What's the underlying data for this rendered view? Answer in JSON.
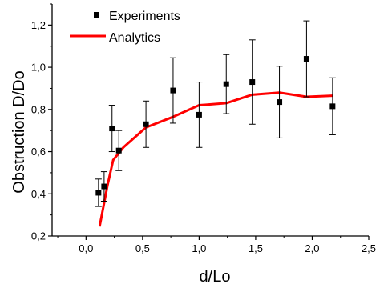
{
  "chart_data": {
    "type": "scatter",
    "xlabel": "d/Lo",
    "ylabel": "Obstruction D/Do",
    "xlim": [
      -0.3,
      2.5
    ],
    "ylim": [
      0.2,
      1.3
    ],
    "xticks": [
      0.0,
      0.5,
      1.0,
      1.5,
      2.0,
      2.5
    ],
    "xtick_labels": [
      "0,0",
      "0,5",
      "1,0",
      "1,5",
      "2,0",
      "2,5"
    ],
    "yticks": [
      0.2,
      0.4,
      0.6,
      0.8,
      1.0,
      1.2
    ],
    "ytick_labels": [
      "0,2",
      "0,4",
      "0,6",
      "0,8",
      "1,0",
      "1,2"
    ],
    "grid": false,
    "legend_position": "top-left",
    "series": [
      {
        "name": "Experiments",
        "kind": "points-with-error-bars",
        "color": "#000000",
        "points": [
          {
            "x": 0.11,
            "y": 0.405,
            "err": 0.065
          },
          {
            "x": 0.16,
            "y": 0.435,
            "err": 0.07
          },
          {
            "x": 0.23,
            "y": 0.71,
            "err": 0.11
          },
          {
            "x": 0.29,
            "y": 0.605,
            "err": 0.095
          },
          {
            "x": 0.53,
            "y": 0.73,
            "err": 0.11
          },
          {
            "x": 0.77,
            "y": 0.89,
            "err": 0.155
          },
          {
            "x": 1.0,
            "y": 0.775,
            "err": 0.155
          },
          {
            "x": 1.24,
            "y": 0.92,
            "err": 0.14
          },
          {
            "x": 1.47,
            "y": 0.93,
            "err": 0.2
          },
          {
            "x": 1.71,
            "y": 0.835,
            "err": 0.17
          },
          {
            "x": 1.95,
            "y": 1.04,
            "err": 0.18
          },
          {
            "x": 2.18,
            "y": 0.815,
            "err": 0.135
          }
        ]
      },
      {
        "name": "Analytics",
        "kind": "line",
        "color": "#ff0000",
        "x": [
          0.12,
          0.19,
          0.24,
          0.33,
          0.53,
          0.77,
          1.0,
          1.24,
          1.47,
          1.71,
          1.95,
          2.18
        ],
        "y": [
          0.245,
          0.44,
          0.56,
          0.62,
          0.715,
          0.765,
          0.82,
          0.83,
          0.87,
          0.88,
          0.86,
          0.865
        ]
      }
    ]
  }
}
